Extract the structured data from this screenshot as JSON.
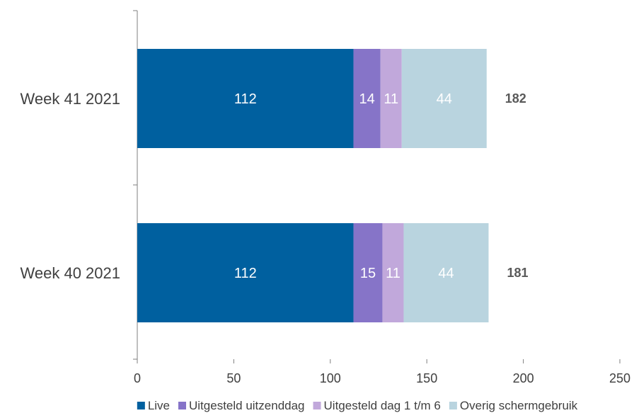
{
  "chart_data": {
    "type": "bar",
    "orientation": "horizontal",
    "stacked": true,
    "title": "",
    "xlabel": "",
    "ylabel": "",
    "xlim": [
      0,
      250
    ],
    "x_ticks": [
      0,
      50,
      100,
      150,
      200,
      250
    ],
    "grid": false,
    "legend_position": "bottom",
    "categories": [
      "Week 41 2021",
      "Week 40 2021"
    ],
    "series": [
      {
        "name": "Live",
        "color": "#00609f",
        "values": [
          112,
          112
        ]
      },
      {
        "name": "Uitgesteld uitzenddag",
        "color": "#8674c8",
        "values": [
          14,
          15
        ]
      },
      {
        "name": "Uitgesteld dag 1 t/m 6",
        "color": "#c1a8db",
        "values": [
          11,
          11
        ]
      },
      {
        "name": "Overig schermgebruik",
        "color": "#b9d4df",
        "values": [
          44,
          44
        ]
      }
    ],
    "totals": [
      182,
      181
    ]
  }
}
